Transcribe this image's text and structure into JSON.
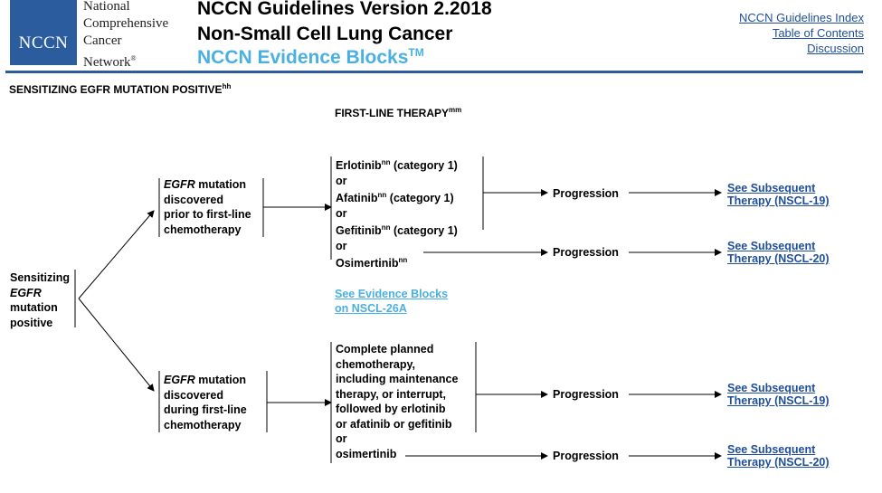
{
  "header": {
    "logo_text": "NCCN",
    "org_lines": [
      "National",
      "Comprehensive",
      "Cancer",
      "Network"
    ],
    "org_mark": "®",
    "title_line1": "NCCN Guidelines Version 2.2018",
    "title_line2": "Non-Small Cell Lung Cancer",
    "title_line3": "NCCN Evidence Blocks",
    "title_line3_mark": "TM",
    "links": {
      "index": "NCCN Guidelines Index",
      "contents": "Table of Contents",
      "discussion": "Discussion"
    }
  },
  "section": {
    "title": "SENSITIZING EGFR MUTATION POSITIVE",
    "title_sup": "hh"
  },
  "column_header": {
    "label": "FIRST-LINE THERAPY",
    "sup": "mm"
  },
  "start_node": {
    "line1": "Sensitizing",
    "line2": "EGFR",
    "line3": "mutation",
    "line4": "positive"
  },
  "branch_top": {
    "label_em": "EGFR",
    "label_line1_rest": " mutation",
    "label_line2": "discovered",
    "label_line3": "prior to first-line",
    "label_line4": "chemotherapy",
    "options": {
      "erlotinib": "Erlotinib",
      "erlotinib_sup": "nn",
      "erlotinib_cat": " (category 1)",
      "or1": "or",
      "afatinib": "Afatinib",
      "afatinib_sup": "nn",
      "afatinib_cat": " (category 1)",
      "or2": "or",
      "gefitinib": "Gefitinib",
      "gefitinib_sup": "nn",
      "gefitinib_cat": " (category 1)",
      "or3": "or",
      "osimertinib": "Osimertinib",
      "osimertinib_sup": "nn"
    },
    "progression_1": "Progression",
    "progression_2": "Progression",
    "link_1": {
      "line1": "See Subsequent",
      "line2": "Therapy (NSCL-19)"
    },
    "link_2": {
      "line1": "See Subsequent",
      "line2": "Therapy (NSCL-20)"
    }
  },
  "evidence_link": {
    "line1": "See Evidence Blocks",
    "line2": "on NSCL-26A"
  },
  "branch_bottom": {
    "label_em": "EGFR",
    "label_line1_rest": " mutation",
    "label_line2": "discovered",
    "label_line3": "during first-line",
    "label_line4": "chemotherapy",
    "options": {
      "line1": "Complete planned",
      "line2": "chemotherapy,",
      "line3": "including maintenance",
      "line4": "therapy, or interrupt,",
      "line5": "followed by erlotinib",
      "line6": "or afatinib or gefitinib",
      "or": "or",
      "osimertinib": "osimertinib"
    },
    "progression_1": "Progression",
    "progression_2": "Progression",
    "link_1": {
      "line1": "See Subsequent",
      "line2": "Therapy (NSCL-19)"
    },
    "link_2": {
      "line1": "See Subsequent",
      "line2": "Therapy (NSCL-20)"
    }
  },
  "colors": {
    "brand_blue": "#2b5c9e",
    "evidence_blue": "#4ab0e2",
    "link_blue": "#1f4e9a"
  }
}
